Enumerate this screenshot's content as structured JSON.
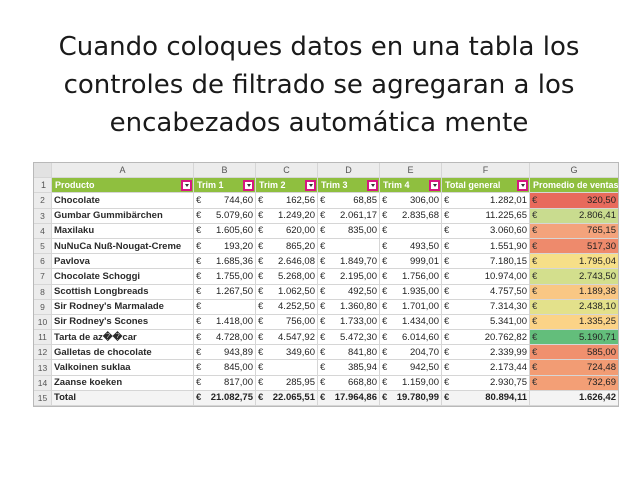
{
  "title": {
    "lines": [
      "Cuando coloques datos en una tabla los",
      "controles de filtrado se agregaran a los",
      "encabezados automática mente"
    ]
  },
  "sheet": {
    "column_letters": [
      "A",
      "B",
      "C",
      "D",
      "E",
      "F",
      "G"
    ],
    "currency": "€",
    "headers": [
      "Producto",
      "Trim 1",
      "Trim 2",
      "Trim 3",
      "Trim 4",
      "Total general",
      "Promedio de ventas"
    ],
    "rows": [
      {
        "n": "2",
        "product": "Chocolate",
        "t1": "744,60",
        "t2": "162,56",
        "t3": "68,85",
        "t4": "306,00",
        "total": "1.282,01",
        "avg": "320,50",
        "color": "#e86a5c"
      },
      {
        "n": "3",
        "product": "Gumbar Gummibärchen",
        "t1": "5.079,60",
        "t2": "1.249,20",
        "t3": "2.061,17",
        "t4": "2.835,68",
        "total": "11.225,65",
        "avg": "2.806,41",
        "color": "#c9dc8f"
      },
      {
        "n": "4",
        "product": "Maxilaku",
        "t1": "1.605,60",
        "t2": "620,00",
        "t3": "835,00",
        "t4": "",
        "total": "3.060,60",
        "avg": "765,15",
        "color": "#f4a37c"
      },
      {
        "n": "5",
        "product": "NuNuCa Nuß-Nougat-Creme",
        "t1": "193,20",
        "t2": "865,20",
        "t3": "",
        "t4": "493,50",
        "total": "1.551,90",
        "avg": "517,30",
        "color": "#ee8a6c"
      },
      {
        "n": "6",
        "product": "Pavlova",
        "t1": "1.685,36",
        "t2": "2.646,08",
        "t3": "1.849,70",
        "t4": "999,01",
        "total": "7.180,15",
        "avg": "1.795,04",
        "color": "#f6df88"
      },
      {
        "n": "7",
        "product": "Chocolate Schoggi",
        "t1": "1.755,00",
        "t2": "5.268,00",
        "t3": "2.195,00",
        "t4": "1.756,00",
        "total": "10.974,00",
        "avg": "2.743,50",
        "color": "#d3df8d"
      },
      {
        "n": "8",
        "product": "Scottish Longbreads",
        "t1": "1.267,50",
        "t2": "1.062,50",
        "t3": "492,50",
        "t4": "1.935,00",
        "total": "4.757,50",
        "avg": "1.189,38",
        "color": "#f9c784"
      },
      {
        "n": "9",
        "product": "Sir Rodney's Marmalade",
        "t1": "",
        "t2": "4.252,50",
        "t3": "1.360,80",
        "t4": "1.701,00",
        "total": "7.314,30",
        "avg": "2.438,10",
        "color": "#e3e18b"
      },
      {
        "n": "10",
        "product": "Sir Rodney's Scones",
        "t1": "1.418,00",
        "t2": "756,00",
        "t3": "1.733,00",
        "t4": "1.434,00",
        "total": "5.341,00",
        "avg": "1.335,25",
        "color": "#fbd387"
      },
      {
        "n": "11",
        "product": "Tarta de az��car",
        "t1": "4.728,00",
        "t2": "4.547,92",
        "t3": "5.472,30",
        "t4": "6.014,60",
        "total": "20.762,82",
        "avg": "5.190,71",
        "color": "#63be7b"
      },
      {
        "n": "12",
        "product": "Galletas de chocolate",
        "t1": "943,89",
        "t2": "349,60",
        "t3": "841,80",
        "t4": "204,70",
        "total": "2.339,99",
        "avg": "585,00",
        "color": "#f0906e"
      },
      {
        "n": "13",
        "product": "Valkoinen suklaa",
        "t1": "845,00",
        "t2": "",
        "t3": "385,94",
        "t4": "942,50",
        "total": "2.173,44",
        "avg": "724,48",
        "color": "#f29c74"
      },
      {
        "n": "14",
        "product": "Zaanse koeken",
        "t1": "817,00",
        "t2": "285,95",
        "t3": "668,80",
        "t4": "1.159,00",
        "total": "2.930,75",
        "avg": "732,69",
        "color": "#f39f76"
      }
    ],
    "total_row": {
      "n": "15",
      "label": "Total",
      "t1": "21.082,75",
      "t2": "22.065,51",
      "t3": "17.964,86",
      "t4": "19.780,99",
      "total": "80.894,11",
      "avg": "1.626,42"
    }
  }
}
